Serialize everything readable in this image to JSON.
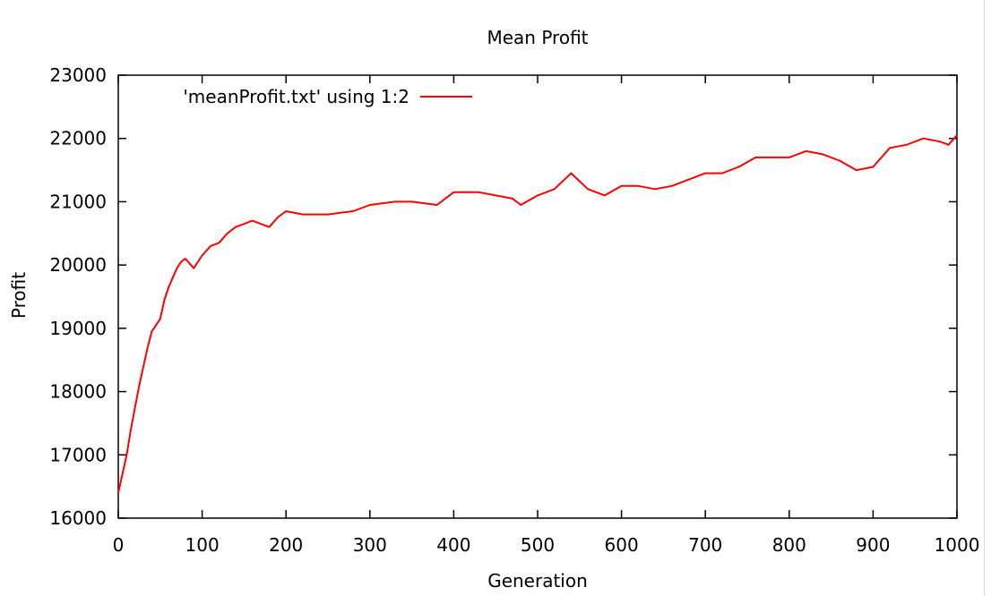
{
  "chart_data": {
    "type": "line",
    "title": "Mean Profit",
    "xlabel": "Generation",
    "ylabel": "Profit",
    "xlim": [
      0,
      1000
    ],
    "ylim": [
      16000,
      23000
    ],
    "xticks": [
      0,
      100,
      200,
      300,
      400,
      500,
      600,
      700,
      800,
      900,
      1000
    ],
    "yticks": [
      16000,
      17000,
      18000,
      19000,
      20000,
      21000,
      22000,
      23000
    ],
    "xtick_labels": [
      "0",
      "100",
      "200",
      "300",
      "400",
      "500",
      "600",
      "700",
      "800",
      "900",
      "1000"
    ],
    "ytick_labels": [
      "16000",
      "17000",
      "18000",
      "19000",
      "20000",
      "21000",
      "22000",
      "23000"
    ],
    "grid": false,
    "legend_position": "top-left",
    "series": [
      {
        "name": "'meanProfit.txt' using 1:2",
        "color": "#ff0000",
        "x": [
          0,
          5,
          10,
          15,
          20,
          25,
          30,
          35,
          40,
          45,
          50,
          55,
          60,
          65,
          70,
          75,
          80,
          90,
          100,
          110,
          120,
          130,
          140,
          150,
          160,
          170,
          180,
          190,
          200,
          220,
          250,
          280,
          300,
          330,
          350,
          380,
          400,
          430,
          450,
          470,
          480,
          500,
          520,
          540,
          560,
          580,
          600,
          620,
          640,
          660,
          680,
          700,
          720,
          740,
          760,
          780,
          800,
          820,
          840,
          860,
          880,
          900,
          920,
          940,
          960,
          980,
          990,
          1000
        ],
        "values": [
          16400,
          16700,
          17000,
          17400,
          17750,
          18100,
          18400,
          18700,
          18950,
          19050,
          19150,
          19450,
          19650,
          19800,
          19950,
          20050,
          20100,
          19950,
          20150,
          20300,
          20350,
          20500,
          20600,
          20650,
          20700,
          20650,
          20600,
          20750,
          20850,
          20800,
          20800,
          20850,
          20950,
          21000,
          21000,
          20950,
          21150,
          21150,
          21100,
          21050,
          20950,
          21100,
          21200,
          21450,
          21200,
          21100,
          21250,
          21250,
          21200,
          21250,
          21350,
          21450,
          21450,
          21550,
          21700,
          21700,
          21700,
          21800,
          21750,
          21650,
          21500,
          21550,
          21850,
          21900,
          22000,
          21950,
          21900,
          22050
        ]
      }
    ]
  },
  "chart_style": {
    "line_color": "#ff0000",
    "axis_color": "#000000",
    "background": "#ffffff"
  }
}
